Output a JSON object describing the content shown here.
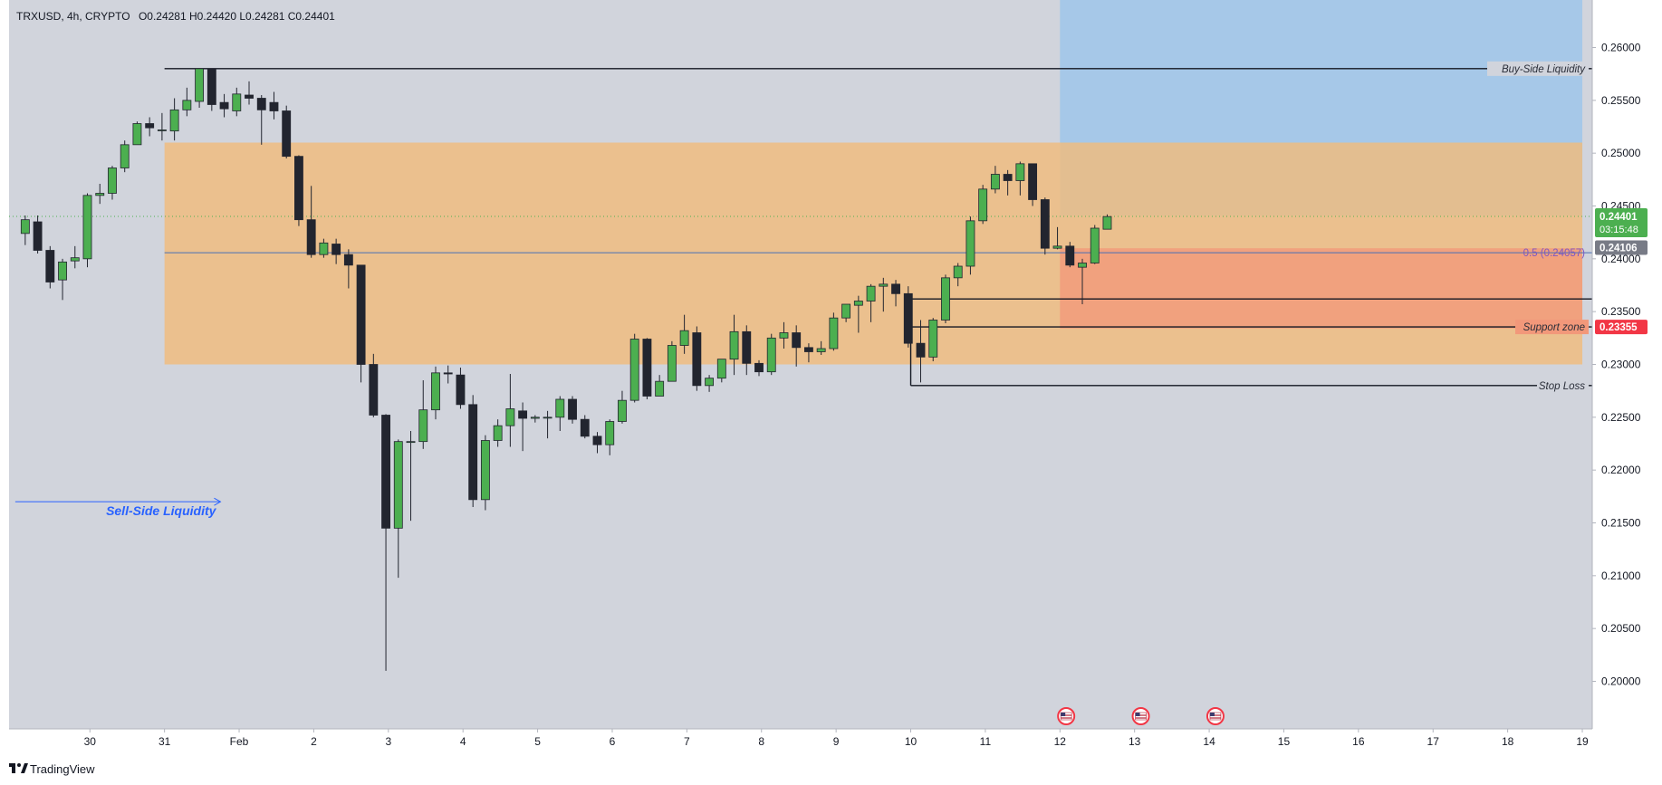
{
  "header": {
    "symbol_line": "TRXUSD, 4h, CRYPTO",
    "ohlc": "O0.24281 H0.24420 L0.24281 C0.24401"
  },
  "branding": {
    "logo_text": "TradingView",
    "logo_icon": "tradingview-logo-icon"
  },
  "annotations": {
    "buy_side_liquidity": "Buy-Side Liquidity",
    "sell_side_liquidity": "Sell-Side Liquidity",
    "fib_level": "0.5 (0.24057)",
    "support_zone": "Support zone",
    "stop_loss": "Stop Loss"
  },
  "price_tags": {
    "last_price": "0.24401",
    "countdown": "03:15:48",
    "gray_tag": "0.24106",
    "red_tag": "0.23355"
  },
  "colors": {
    "bull": "#4caf50",
    "bear": "#22252f",
    "background": "#d1d4dc",
    "supply_zone": "#f0bc7c",
    "target_zone": "#a6c8e8",
    "stop_zone": "#f2987a",
    "last_price": "#4caf50",
    "stop_tag": "#f23645"
  },
  "chart_data": {
    "type": "candlestick",
    "interval": "4h",
    "symbol": "TRXUSD",
    "ylim": [
      0.1955,
      0.2645
    ],
    "y_ticks": [
      "0.26000",
      "0.25500",
      "0.25000",
      "0.24500",
      "0.24000",
      "0.23500",
      "0.23000",
      "0.22500",
      "0.22000",
      "0.21500",
      "0.21000",
      "0.20500",
      "0.20000"
    ],
    "x_ticks": [
      {
        "label": "30",
        "t": -12
      },
      {
        "label": "31",
        "t": -6
      },
      {
        "label": "Feb",
        "t": 0
      },
      {
        "label": "2",
        "t": 6
      },
      {
        "label": "3",
        "t": 12
      },
      {
        "label": "4",
        "t": 18
      },
      {
        "label": "5",
        "t": 24
      },
      {
        "label": "6",
        "t": 30
      },
      {
        "label": "7",
        "t": 36
      },
      {
        "label": "8",
        "t": 42
      },
      {
        "label": "9",
        "t": 48
      },
      {
        "label": "10",
        "t": 54
      },
      {
        "label": "11",
        "t": 60
      },
      {
        "label": "12",
        "t": 66
      },
      {
        "label": "13",
        "t": 72
      },
      {
        "label": "14",
        "t": 78
      },
      {
        "label": "15",
        "t": 84
      },
      {
        "label": "16",
        "t": 90
      },
      {
        "label": "17",
        "t": 96
      },
      {
        "label": "18",
        "t": 102
      },
      {
        "label": "19",
        "t": 108
      }
    ],
    "candles": [
      [
        -17.2,
        0.2424,
        0.2441,
        0.2413,
        0.2437
      ],
      [
        -16.2,
        0.2435,
        0.2441,
        0.2405,
        0.2408
      ],
      [
        -15.2,
        0.2408,
        0.2412,
        0.2372,
        0.2378
      ],
      [
        -14.2,
        0.238,
        0.24,
        0.2361,
        0.2397
      ],
      [
        -13.2,
        0.2398,
        0.2412,
        0.2391,
        0.2401
      ],
      [
        -12.2,
        0.24,
        0.2462,
        0.2392,
        0.246
      ],
      [
        -11.2,
        0.246,
        0.2471,
        0.2452,
        0.2462
      ],
      [
        -10.2,
        0.2462,
        0.2488,
        0.2456,
        0.2486
      ],
      [
        -9.2,
        0.2486,
        0.2512,
        0.2482,
        0.2508
      ],
      [
        -8.2,
        0.2508,
        0.253,
        0.2508,
        0.2528
      ],
      [
        -7.2,
        0.2528,
        0.2534,
        0.2516,
        0.2524
      ],
      [
        -6.2,
        0.2522,
        0.2538,
        0.2512,
        0.2522
      ],
      [
        -5.2,
        0.2521,
        0.2552,
        0.2512,
        0.2541
      ],
      [
        -4.2,
        0.2541,
        0.2562,
        0.2535,
        0.255
      ],
      [
        -3.2,
        0.2549,
        0.2578,
        0.2543,
        0.258
      ],
      [
        -2.2,
        0.258,
        0.258,
        0.254,
        0.2546
      ],
      [
        -1.2,
        0.2548,
        0.2556,
        0.2534,
        0.2542
      ],
      [
        -0.2,
        0.254,
        0.2562,
        0.2535,
        0.2556
      ],
      [
        0.8,
        0.2555,
        0.2568,
        0.2546,
        0.2552
      ],
      [
        1.8,
        0.2552,
        0.2555,
        0.2508,
        0.2541
      ],
      [
        2.8,
        0.2548,
        0.2558,
        0.2532,
        0.254
      ],
      [
        3.8,
        0.254,
        0.2545,
        0.2495,
        0.2497
      ],
      [
        4.8,
        0.2497,
        0.2498,
        0.2431,
        0.2437
      ],
      [
        5.8,
        0.2437,
        0.2469,
        0.2401,
        0.2404
      ],
      [
        6.8,
        0.2404,
        0.2419,
        0.2401,
        0.2415
      ],
      [
        7.8,
        0.2414,
        0.2419,
        0.2395,
        0.2404
      ],
      [
        8.8,
        0.2404,
        0.2409,
        0.2372,
        0.2394
      ],
      [
        9.8,
        0.2394,
        0.2394,
        0.2283,
        0.23
      ],
      [
        10.8,
        0.23,
        0.231,
        0.225,
        0.2252
      ],
      [
        11.8,
        0.2252,
        0.2253,
        0.201,
        0.2145
      ],
      [
        12.8,
        0.2145,
        0.2229,
        0.2098,
        0.2227
      ],
      [
        13.8,
        0.2227,
        0.2237,
        0.2152,
        0.2227
      ],
      [
        14.8,
        0.2227,
        0.2285,
        0.222,
        0.2257
      ],
      [
        15.8,
        0.2257,
        0.2298,
        0.2248,
        0.2292
      ],
      [
        16.8,
        0.2292,
        0.2299,
        0.2282,
        0.2291
      ],
      [
        17.8,
        0.229,
        0.2297,
        0.2258,
        0.2262
      ],
      [
        18.8,
        0.2262,
        0.2271,
        0.2165,
        0.2172
      ],
      [
        19.8,
        0.2172,
        0.2233,
        0.2162,
        0.2228
      ],
      [
        20.8,
        0.2228,
        0.2248,
        0.2222,
        0.2242
      ],
      [
        21.8,
        0.2242,
        0.2291,
        0.2222,
        0.2258
      ],
      [
        22.8,
        0.2256,
        0.2264,
        0.2218,
        0.2249
      ],
      [
        23.8,
        0.2249,
        0.2252,
        0.2245,
        0.225
      ],
      [
        24.8,
        0.225,
        0.2256,
        0.223,
        0.225
      ],
      [
        25.8,
        0.225,
        0.227,
        0.2237,
        0.2267
      ],
      [
        26.8,
        0.2267,
        0.227,
        0.2244,
        0.2248
      ],
      [
        27.8,
        0.2248,
        0.2252,
        0.223,
        0.2232
      ],
      [
        28.8,
        0.2232,
        0.2236,
        0.2216,
        0.2224
      ],
      [
        29.8,
        0.2224,
        0.2248,
        0.2214,
        0.2246
      ],
      [
        30.8,
        0.2246,
        0.2275,
        0.2244,
        0.2266
      ],
      [
        31.8,
        0.2266,
        0.2329,
        0.2264,
        0.2324
      ],
      [
        32.8,
        0.2324,
        0.2325,
        0.2267,
        0.227
      ],
      [
        33.8,
        0.227,
        0.229,
        0.227,
        0.2284
      ],
      [
        34.8,
        0.2284,
        0.2322,
        0.2284,
        0.2318
      ],
      [
        35.8,
        0.2318,
        0.2347,
        0.231,
        0.2332
      ],
      [
        36.8,
        0.233,
        0.2336,
        0.2275,
        0.228
      ],
      [
        37.8,
        0.228,
        0.229,
        0.2274,
        0.2287
      ],
      [
        38.8,
        0.2287,
        0.2303,
        0.2283,
        0.2305
      ],
      [
        39.8,
        0.2305,
        0.2347,
        0.229,
        0.2331
      ],
      [
        40.8,
        0.2331,
        0.2337,
        0.229,
        0.2301
      ],
      [
        41.8,
        0.2301,
        0.2304,
        0.2289,
        0.2293
      ],
      [
        42.8,
        0.2293,
        0.2329,
        0.229,
        0.2325
      ],
      [
        43.8,
        0.2325,
        0.234,
        0.2315,
        0.233
      ],
      [
        44.8,
        0.233,
        0.2337,
        0.2298,
        0.2316
      ],
      [
        45.8,
        0.2316,
        0.232,
        0.2302,
        0.2312
      ],
      [
        46.8,
        0.2312,
        0.2322,
        0.2309,
        0.2315
      ],
      [
        47.8,
        0.2315,
        0.2349,
        0.2313,
        0.2344
      ],
      [
        48.8,
        0.2344,
        0.2356,
        0.234,
        0.2357
      ],
      [
        49.8,
        0.2356,
        0.2365,
        0.233,
        0.236
      ],
      [
        50.8,
        0.236,
        0.2376,
        0.234,
        0.2374
      ],
      [
        51.8,
        0.2374,
        0.2382,
        0.235,
        0.2376
      ],
      [
        52.8,
        0.2376,
        0.238,
        0.2355,
        0.2367
      ],
      [
        53.8,
        0.2367,
        0.2374,
        0.2316,
        0.232
      ],
      [
        54.8,
        0.232,
        0.2342,
        0.2283,
        0.2307
      ],
      [
        55.8,
        0.2307,
        0.2344,
        0.2303,
        0.2342
      ],
      [
        56.8,
        0.2342,
        0.2385,
        0.2339,
        0.2382
      ],
      [
        57.8,
        0.2382,
        0.2396,
        0.2374,
        0.2393
      ],
      [
        58.8,
        0.2393,
        0.244,
        0.2385,
        0.2436
      ],
      [
        59.8,
        0.2436,
        0.247,
        0.2433,
        0.2466
      ],
      [
        60.8,
        0.2466,
        0.2488,
        0.2462,
        0.248
      ],
      [
        61.8,
        0.248,
        0.2484,
        0.246,
        0.2474
      ],
      [
        62.8,
        0.2474,
        0.2492,
        0.246,
        0.249
      ],
      [
        63.8,
        0.249,
        0.249,
        0.245,
        0.2456
      ],
      [
        64.8,
        0.2456,
        0.2458,
        0.2404,
        0.241
      ],
      [
        65.8,
        0.241,
        0.243,
        0.2409,
        0.2412
      ],
      [
        66.8,
        0.2412,
        0.2416,
        0.2392,
        0.2394
      ],
      [
        67.8,
        0.2392,
        0.24,
        0.2357,
        0.2396
      ],
      [
        68.8,
        0.2396,
        0.2432,
        0.2395,
        0.2429
      ],
      [
        69.8,
        0.2428,
        0.2442,
        0.2428,
        0.244
      ]
    ],
    "zones": {
      "supply_zone": {
        "t0": -6,
        "t1": 108,
        "top": 0.251,
        "bottom": 0.23
      },
      "target_zone": {
        "t0": 66,
        "t1": 108,
        "top": 0.2645,
        "bottom": 0.2441
      },
      "stop_zone": {
        "t0": 66,
        "t1": 108,
        "top": 0.241,
        "bottom": 0.2334
      }
    },
    "levels": {
      "buy_side_liquidity": {
        "price": 0.258,
        "t0": -6
      },
      "fib_0_5": {
        "price": 0.24057,
        "t0": -6
      },
      "last_price": {
        "price": 0.24401
      },
      "line_0_2362": {
        "price": 0.2362,
        "t0": 54
      },
      "support_zone": {
        "price": 0.23355,
        "t0": 54
      },
      "stop_loss": {
        "price": 0.228,
        "t0": 54
      },
      "sell_side_liquidity": {
        "price": 0.217,
        "t0": -18,
        "t1": -1.5
      }
    },
    "event_markers": [
      {
        "t": 66.5
      },
      {
        "t": 72.5
      },
      {
        "t": 78.5
      }
    ]
  }
}
